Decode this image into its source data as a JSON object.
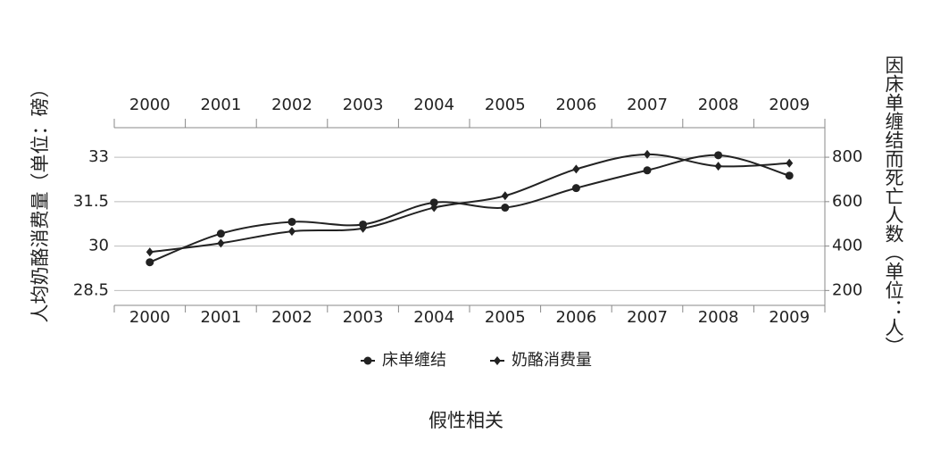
{
  "chart_data": {
    "type": "line",
    "x_label": "假性相关",
    "y_label": "人均奶酪消费量（单位：磅）",
    "y2_label": "因床单缠结而死亡人数（单位：人）",
    "categories": [
      "2000",
      "2001",
      "2002",
      "2003",
      "2004",
      "2005",
      "2006",
      "2007",
      "2008",
      "2009"
    ],
    "series": [
      {
        "name": "床单缠结",
        "color": "#222222",
        "marker": "circle",
        "axis": "y2",
        "values": [
          327,
          456,
          509,
          497,
          596,
          573,
          661,
          741,
          809,
          717
        ]
      },
      {
        "name": "奶酪消费量",
        "color": "#222222",
        "marker": "diamond",
        "values": [
          29.8,
          30.1,
          30.5,
          30.6,
          31.3,
          31.7,
          32.6,
          33.1,
          32.7,
          32.8
        ]
      }
    ],
    "ylim": [
      28,
      34
    ],
    "yticks": [
      28.5,
      30,
      31.5,
      33
    ],
    "y2lim": [
      133,
      933
    ],
    "y2ticks": [
      200,
      400,
      600,
      800
    ],
    "grid": true,
    "legend": "bottom"
  }
}
